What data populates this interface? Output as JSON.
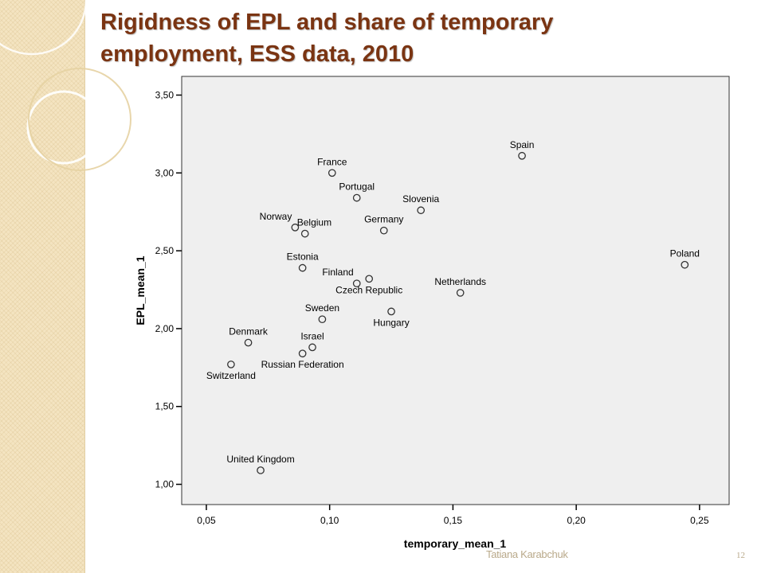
{
  "slide": {
    "title_line1": "Rigidness of EPL and share of temporary",
    "title_line2": "employment, ESS data, 2010",
    "author": "Tatiana Karabchuk",
    "page_number": "12",
    "title_color": "#7a3412",
    "band_color": "#f4e4c1"
  },
  "chart_data": {
    "type": "scatter",
    "title": "",
    "xlabel": "temporary_mean_1",
    "ylabel": "EPL_mean_1",
    "xlim": [
      0.04,
      0.262
    ],
    "ylim": [
      0.87,
      3.62
    ],
    "xticks": [
      0.05,
      0.1,
      0.15,
      0.2,
      0.25
    ],
    "xtick_labels": [
      "0,05",
      "0,10",
      "0,15",
      "0,20",
      "0,25"
    ],
    "yticks": [
      1.0,
      1.5,
      2.0,
      2.5,
      3.0,
      3.5
    ],
    "ytick_labels": [
      "1,00",
      "1,50",
      "2,00",
      "2,50",
      "3,00",
      "3,50"
    ],
    "grid": false,
    "plot_background": "#efefef",
    "points": [
      {
        "label": "Spain",
        "x": 0.178,
        "y": 3.11,
        "label_pos": "top"
      },
      {
        "label": "France",
        "x": 0.101,
        "y": 3.0,
        "label_pos": "top"
      },
      {
        "label": "Portugal",
        "x": 0.111,
        "y": 2.84,
        "label_pos": "top"
      },
      {
        "label": "Slovenia",
        "x": 0.137,
        "y": 2.76,
        "label_pos": "top"
      },
      {
        "label": "Germany",
        "x": 0.122,
        "y": 2.63,
        "label_pos": "top"
      },
      {
        "label": "Norway",
        "x": 0.086,
        "y": 2.65,
        "label_pos": "top-left"
      },
      {
        "label": "Belgium",
        "x": 0.09,
        "y": 2.61,
        "label_pos": "top-right"
      },
      {
        "label": "Poland",
        "x": 0.244,
        "y": 2.41,
        "label_pos": "top"
      },
      {
        "label": "Estonia",
        "x": 0.089,
        "y": 2.39,
        "label_pos": "top"
      },
      {
        "label": "Finland",
        "x": 0.111,
        "y": 2.29,
        "label_pos": "top-left"
      },
      {
        "label": "Czech Republic",
        "x": 0.116,
        "y": 2.32,
        "label_pos": "bottom"
      },
      {
        "label": "Netherlands",
        "x": 0.153,
        "y": 2.23,
        "label_pos": "top"
      },
      {
        "label": "Sweden",
        "x": 0.097,
        "y": 2.06,
        "label_pos": "top"
      },
      {
        "label": "Hungary",
        "x": 0.125,
        "y": 2.11,
        "label_pos": "bottom"
      },
      {
        "label": "Denmark",
        "x": 0.067,
        "y": 1.91,
        "label_pos": "top"
      },
      {
        "label": "Israel",
        "x": 0.093,
        "y": 1.88,
        "label_pos": "top"
      },
      {
        "label": "Russian Federation",
        "x": 0.089,
        "y": 1.84,
        "label_pos": "bottom"
      },
      {
        "label": "Switzerland",
        "x": 0.06,
        "y": 1.77,
        "label_pos": "bottom"
      },
      {
        "label": "United Kingdom",
        "x": 0.072,
        "y": 1.09,
        "label_pos": "top"
      }
    ]
  }
}
